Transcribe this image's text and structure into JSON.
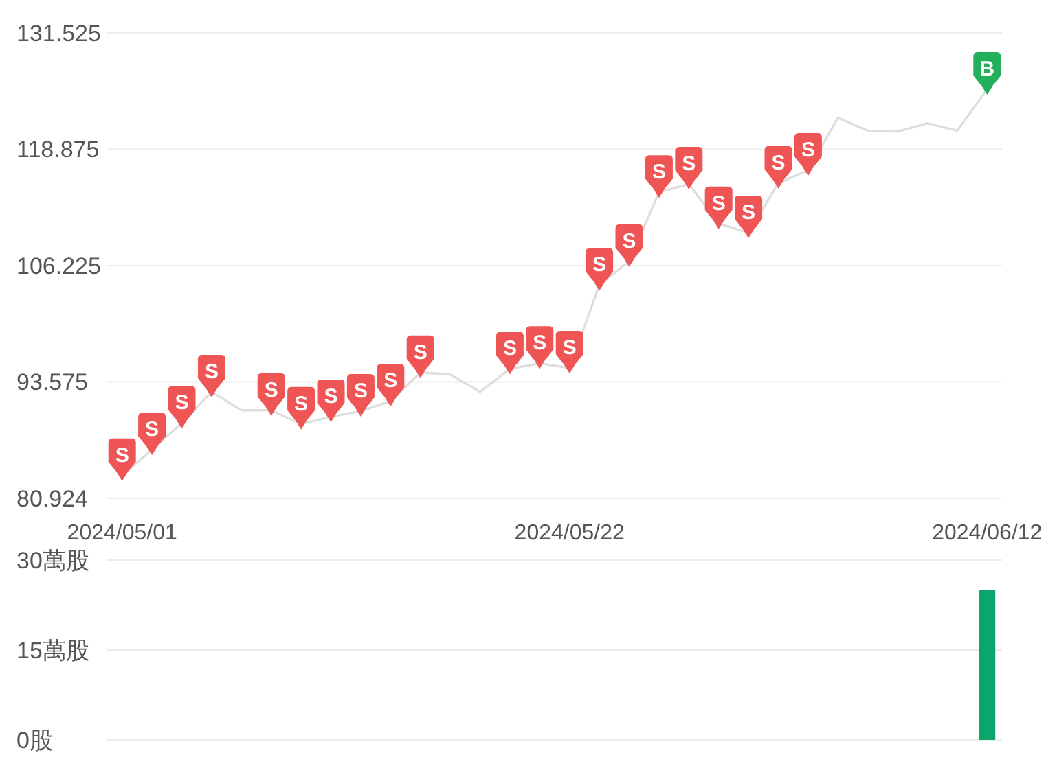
{
  "chart_data": [
    {
      "type": "line",
      "categories": [
        "2024/05/01",
        null,
        null,
        null,
        null,
        null,
        null,
        null,
        null,
        null,
        null,
        null,
        null,
        null,
        null,
        "2024/05/22",
        null,
        null,
        null,
        null,
        null,
        null,
        null,
        null,
        null,
        null,
        null,
        null,
        null,
        "2024/06/12"
      ],
      "series": [
        {
          "color": "#dedede",
          "values": [
            83.4,
            86.2,
            89.1,
            92.5,
            90.5,
            90.5,
            89.0,
            89.8,
            90.4,
            91.5,
            94.6,
            94.4,
            92.5,
            95.0,
            95.6,
            95.1,
            104.1,
            106.7,
            114.2,
            115.1,
            110.8,
            109.8,
            115.2,
            116.6,
            122.3,
            120.9,
            120.8,
            121.7,
            120.9,
            125.4
          ]
        },
        {
          "name": "S",
          "type": "scatter",
          "color": "#f05555",
          "values": [
            83.4,
            86.2,
            89.1,
            92.5,
            null,
            90.5,
            89.0,
            89.8,
            90.4,
            91.5,
            94.6,
            null,
            null,
            95.0,
            95.6,
            95.1,
            104.1,
            106.7,
            114.2,
            115.1,
            110.8,
            109.8,
            115.2,
            116.6,
            null,
            null,
            null,
            null,
            null,
            null
          ]
        },
        {
          "name": "B",
          "type": "scatter",
          "color": "#23b05a",
          "values": [
            null,
            null,
            null,
            null,
            null,
            null,
            null,
            null,
            null,
            null,
            null,
            null,
            null,
            null,
            null,
            null,
            null,
            null,
            null,
            null,
            null,
            null,
            null,
            null,
            null,
            null,
            null,
            null,
            null,
            125.4
          ]
        }
      ],
      "ylim": [
        80.924,
        131.525
      ],
      "yticks": [
        80.924,
        93.575,
        106.225,
        118.875,
        131.525
      ],
      "grid": "y"
    },
    {
      "type": "bar",
      "categories": [
        null,
        null,
        null,
        null,
        null,
        null,
        null,
        null,
        null,
        null,
        null,
        null,
        null,
        null,
        null,
        null,
        null,
        null,
        null,
        null,
        null,
        null,
        null,
        null,
        null,
        null,
        null,
        null,
        null,
        null
      ],
      "values": [
        null,
        null,
        null,
        null,
        null,
        null,
        null,
        null,
        null,
        null,
        null,
        null,
        null,
        null,
        null,
        null,
        null,
        null,
        null,
        null,
        null,
        null,
        null,
        null,
        null,
        null,
        null,
        null,
        null,
        25
      ],
      "color": "#0ca66a",
      "ylim": [
        0,
        30
      ],
      "yticks": [
        {
          "value": 0,
          "label": "0股"
        },
        {
          "value": 15,
          "label": "15萬股"
        },
        {
          "value": 30,
          "label": "30萬股"
        }
      ],
      "grid": "y"
    }
  ]
}
